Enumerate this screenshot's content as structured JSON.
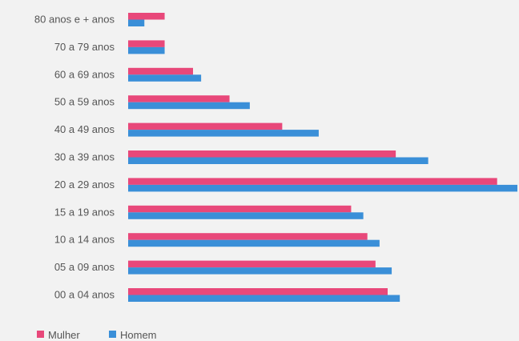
{
  "chart_data": {
    "type": "bar",
    "orientation": "horizontal",
    "title": "",
    "xlabel": "",
    "ylabel": "",
    "categories": [
      "80 anos e + anos",
      "70 a 79 anos",
      "60 a 69 anos",
      "50 a 59 anos",
      "40 a 49 anos",
      "30 a 39 anos",
      "20 a 29 anos",
      "15 a 19 anos",
      "10 a 14 anos",
      "05 a 09 anos",
      "00 a 04 anos"
    ],
    "series": [
      {
        "name": "Mulher",
        "color": "#e8487a",
        "values": [
          9,
          9,
          16,
          25,
          38,
          66,
          91,
          55,
          59,
          61,
          64
        ]
      },
      {
        "name": "Homem",
        "color": "#3a8fd8",
        "values": [
          4,
          9,
          18,
          30,
          47,
          74,
          96,
          58,
          62,
          65,
          67
        ]
      }
    ],
    "xlim": [
      0,
      96
    ],
    "grid": false,
    "legend": "bottom-left"
  }
}
